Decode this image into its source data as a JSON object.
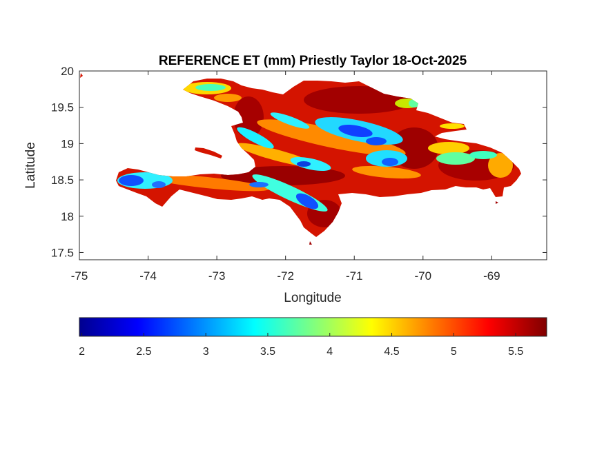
{
  "map": {
    "title": "REFERENCE ET (mm) Priestly Taylor 18-Oct-2025",
    "xlabel": "Longitude",
    "ylabel": "Latitude",
    "x_ticks": [
      "-75",
      "-74",
      "-73",
      "-72",
      "-71",
      "-70",
      "-69"
    ],
    "y_ticks": [
      "20",
      "19.5",
      "19",
      "18.5",
      "18",
      "17.5"
    ],
    "x_range": [
      -75,
      -68.2
    ],
    "y_range": [
      17.4,
      20
    ],
    "colormap": "jet",
    "colorbar": {
      "ticks": [
        "2",
        "2.5",
        "3",
        "3.5",
        "4",
        "4.5",
        "5",
        "5.5"
      ],
      "range": [
        1.98,
        5.75
      ],
      "orientation": "horizontal",
      "placement": "below"
    },
    "colors": {
      "low": "#00008f",
      "mid": "#00ffff",
      "high": "#800000",
      "dominant": "#d01000"
    }
  }
}
